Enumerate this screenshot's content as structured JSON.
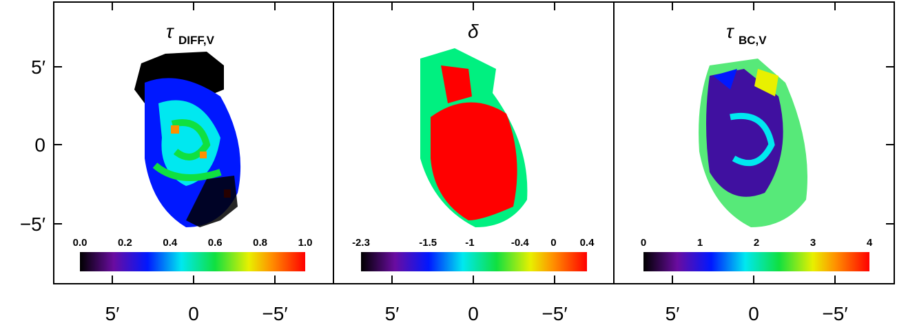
{
  "y_axis": {
    "ticks": [
      "5′",
      "0",
      "−5′"
    ]
  },
  "panels": [
    {
      "title": "τ",
      "subscript": "DIFF,V",
      "x_ticks": [
        "5′",
        "0",
        "−5′"
      ],
      "colorbar": {
        "ticks": [
          "0.0",
          "0.2",
          "0.4",
          "0.6",
          "0.8",
          "1.0"
        ]
      }
    },
    {
      "title": "δ",
      "x_ticks": [
        "5′",
        "0",
        "−5′"
      ],
      "colorbar": {
        "ticks": [
          "-2.3",
          "-1.5",
          "-1",
          "-0.4",
          "0",
          "0.4"
        ]
      }
    },
    {
      "title": "τ",
      "subscript": "BC,V",
      "x_ticks": [
        "5′",
        "0",
        "−5′"
      ],
      "colorbar": {
        "ticks": [
          "0",
          "1",
          "2",
          "3",
          "4"
        ]
      }
    }
  ]
}
